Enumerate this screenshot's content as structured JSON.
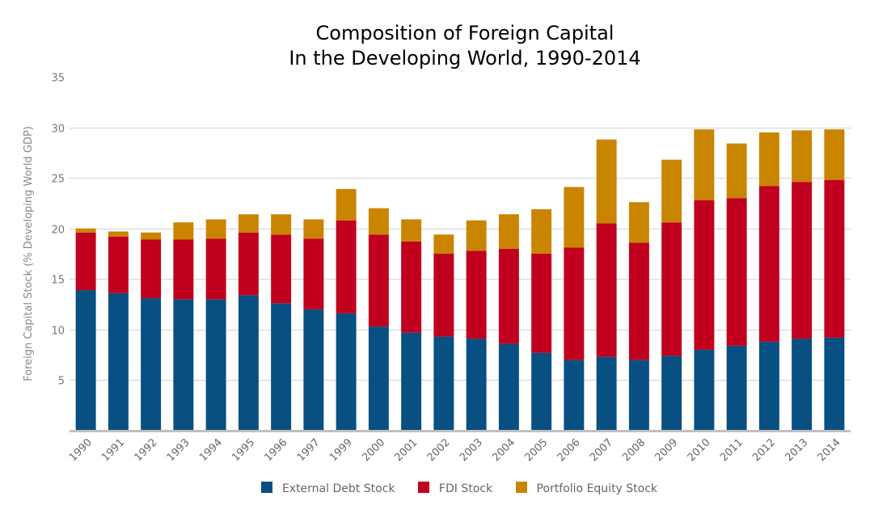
{
  "chart_data": {
    "type": "bar",
    "stacked": true,
    "title": "Composition of Foreign Capital\nIn the Developing World, 1990-2014",
    "title_lines": [
      "Composition of Foreign Capital",
      "In the Developing World, 1990-2014"
    ],
    "xlabel": "",
    "ylabel": "Foreign Capital Stock (% Developing World GDP)",
    "ylim": [
      0,
      35
    ],
    "yticks": [
      5,
      10,
      15,
      20,
      25,
      30,
      35
    ],
    "grid": true,
    "legend_position": "bottom",
    "categories": [
      "1990",
      "1991",
      "1992",
      "1993",
      "1994",
      "1995",
      "1996",
      "1997",
      "1999",
      "2000",
      "2001",
      "2002",
      "2003",
      "2004",
      "2005",
      "2006",
      "2007",
      "2008",
      "2009",
      "2010",
      "2011",
      "2012",
      "2013",
      "2014"
    ],
    "series": [
      {
        "name": "External Debt Stock",
        "color": "#084f82",
        "values": [
          13.9,
          13.6,
          13.1,
          13.0,
          13.0,
          13.4,
          12.6,
          12.0,
          11.6,
          10.3,
          9.7,
          9.3,
          9.1,
          8.6,
          7.7,
          7.0,
          7.3,
          7.0,
          7.4,
          8.0,
          8.4,
          8.8,
          9.1,
          9.2
        ]
      },
      {
        "name": "FDI Stock",
        "color": "#c0001e",
        "values": [
          5.7,
          5.6,
          5.8,
          5.9,
          6.0,
          6.2,
          6.8,
          7.0,
          9.2,
          9.1,
          9.0,
          8.2,
          8.7,
          9.4,
          9.8,
          11.1,
          13.2,
          11.6,
          13.2,
          14.8,
          14.6,
          15.4,
          15.5,
          15.6
        ]
      },
      {
        "name": "Portfolio Equity Stock",
        "color": "#c98500",
        "values": [
          0.4,
          0.5,
          0.7,
          1.7,
          1.9,
          1.8,
          2.0,
          1.9,
          3.1,
          2.6,
          2.2,
          1.9,
          3.0,
          3.4,
          4.4,
          6.0,
          8.3,
          4.0,
          6.2,
          7.0,
          5.4,
          5.3,
          5.1,
          5.0
        ]
      }
    ]
  }
}
